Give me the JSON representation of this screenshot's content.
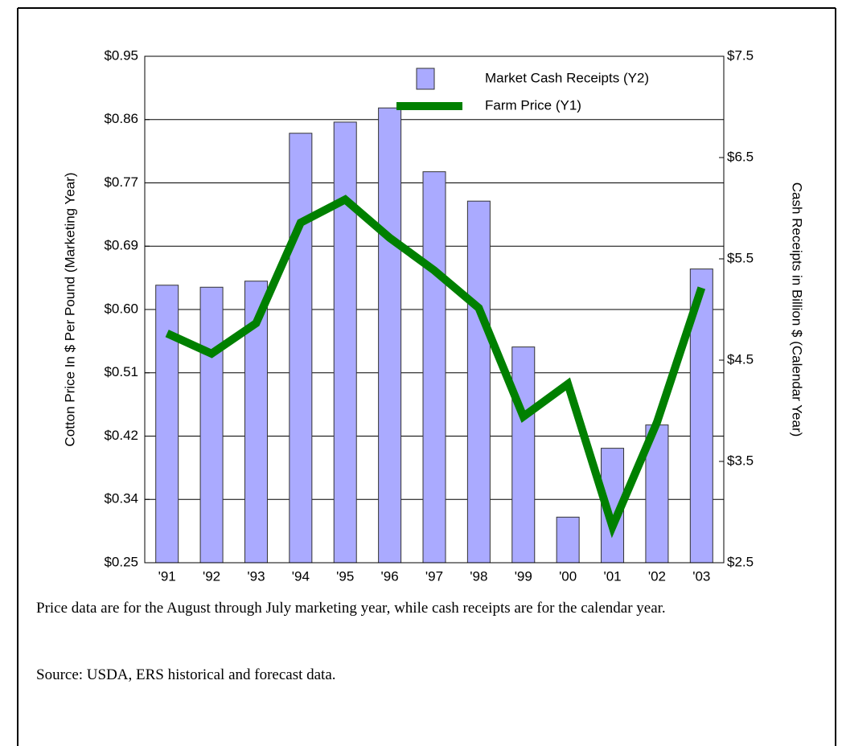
{
  "chart_data": {
    "type": "combo",
    "categories": [
      "'91",
      "'92",
      "'93",
      "'94",
      "'95",
      "'96",
      "'97",
      "'98",
      "'99",
      "'00",
      "'01",
      "'02",
      "'03"
    ],
    "series": [
      {
        "name": "Market Cash Receipts (Y2)",
        "type": "bar",
        "axis": "y2",
        "color": "#aaaaff",
        "values": [
          5.24,
          5.22,
          5.28,
          6.74,
          6.85,
          6.99,
          6.36,
          6.07,
          4.63,
          2.95,
          3.63,
          3.86,
          5.4
        ]
      },
      {
        "name": "Farm Price (Y1)",
        "type": "line",
        "color": "#008000",
        "values": [
          0.567,
          0.539,
          0.581,
          0.72,
          0.752,
          0.699,
          0.654,
          0.602,
          0.452,
          0.497,
          0.3,
          0.444,
          0.63
        ]
      }
    ],
    "y_label": "Cotton Price In $ Per Pound (Marketing Year)",
    "y2_label": "Cash Receipts in Billion $ (Calendar Year)",
    "ylim": [
      0.25,
      0.95
    ],
    "yticks": [
      {
        "value": 0.25,
        "label": "$0.25"
      },
      {
        "value": 0.3375,
        "label": "$0.34"
      },
      {
        "value": 0.425,
        "label": "$0.42"
      },
      {
        "value": 0.5125,
        "label": "$0.51"
      },
      {
        "value": 0.6,
        "label": "$0.60"
      },
      {
        "value": 0.6875,
        "label": "$0.69"
      },
      {
        "value": 0.775,
        "label": "$0.77"
      },
      {
        "value": 0.8625,
        "label": "$0.86"
      },
      {
        "value": 0.95,
        "label": "$0.95"
      }
    ],
    "y2lim": [
      2.5,
      7.5
    ],
    "y2ticks": [
      {
        "value": 2.5,
        "label": "$2.5"
      },
      {
        "value": 3.5,
        "label": "$3.5"
      },
      {
        "value": 4.5,
        "label": "$4.5"
      },
      {
        "value": 5.5,
        "label": "$5.5"
      },
      {
        "value": 6.5,
        "label": "$6.5"
      },
      {
        "value": 7.5,
        "label": "$7.5"
      }
    ],
    "grid": true,
    "legend": "top",
    "notes": [
      "Price data are for the August through July marketing year, while cash receipts are for the calendar year.",
      "Source: USDA, ERS historical and forecast data."
    ]
  }
}
